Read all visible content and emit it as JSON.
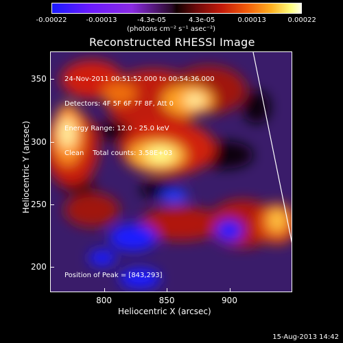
{
  "colorbar": {
    "tick_labels": [
      "-0.00022",
      "-0.00013",
      "-4.3e-05",
      "4.3e-05",
      "0.00013",
      "0.00022"
    ],
    "units_label": "(photons cm⁻² s⁻¹ asec⁻²)"
  },
  "chart_data": {
    "type": "heatmap",
    "title": "Reconstructed RHESSI Image",
    "xlabel": "Heliocentric X (arcsec)",
    "ylabel": "Heliocentric Y (arcsec)",
    "x_ticks": [
      800,
      850,
      900
    ],
    "y_ticks": [
      200,
      250,
      300,
      350
    ],
    "xlim": [
      757,
      950
    ],
    "ylim": [
      180,
      372
    ],
    "color_range": [
      -0.00022,
      0.00022
    ],
    "peak": [
      843,
      293
    ],
    "annotations": [
      "24-Nov-2011 00:51:52.000 to 00:54:36.000",
      "Detectors: 4F 5F 6F 7F 8F, Att 0",
      "Energy Range: 12.0 - 25.0 keV",
      "Clean    Total counts: 3.58E+03"
    ],
    "peak_label": "Position of Peak = [843,293]"
  },
  "footer": {
    "date": "15-Aug-2013 14:42"
  }
}
